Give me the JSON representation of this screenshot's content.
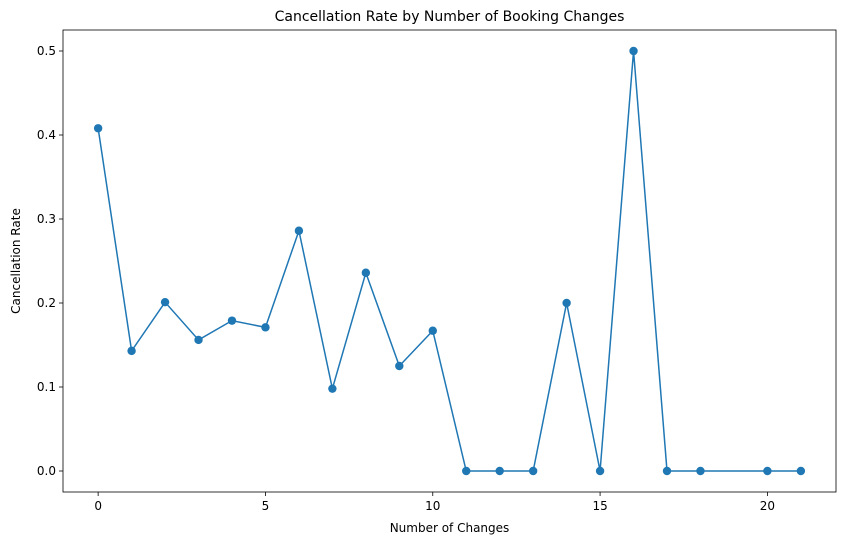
{
  "chart_data": {
    "type": "line",
    "title": "Cancellation Rate by Number of Booking Changes",
    "xlabel": "Number of Changes",
    "ylabel": "Cancellation Rate",
    "xlim": [
      -1.05,
      22.05
    ],
    "ylim": [
      -0.025,
      0.525
    ],
    "xticks": [
      0,
      5,
      10,
      15,
      20
    ],
    "yticks": [
      0.0,
      0.1,
      0.2,
      0.3,
      0.4,
      0.5
    ],
    "xtick_labels": [
      "0",
      "5",
      "10",
      "15",
      "20"
    ],
    "ytick_labels": [
      "0.0",
      "0.1",
      "0.2",
      "0.3",
      "0.4",
      "0.5"
    ],
    "grid": false,
    "color": "#1f77b4",
    "marker": "circle",
    "series": [
      {
        "x": [
          0,
          1,
          2,
          3,
          4,
          5,
          6,
          7,
          8,
          9,
          10,
          11,
          12,
          13,
          14,
          15,
          16,
          17,
          18,
          20,
          21
        ],
        "y": [
          0.408,
          0.143,
          0.201,
          0.156,
          0.179,
          0.171,
          0.286,
          0.098,
          0.236,
          0.125,
          0.167,
          0.0,
          0.0,
          0.0,
          0.2,
          0.0,
          0.5,
          0.0,
          0.0,
          0.0,
          0.0
        ]
      }
    ]
  }
}
